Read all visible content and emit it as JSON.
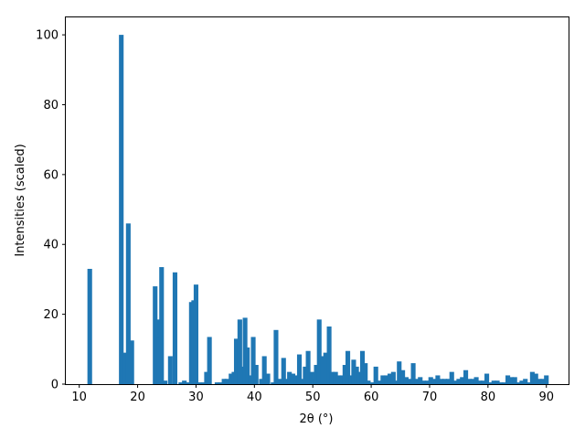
{
  "chart_data": {
    "type": "bar",
    "title": "",
    "xlabel": "2θ (°)",
    "ylabel": "Intensities (scaled)",
    "xlim": [
      7.7,
      93.8
    ],
    "ylim": [
      0,
      105
    ],
    "xticks": [
      10,
      20,
      30,
      40,
      50,
      60,
      70,
      80,
      90
    ],
    "yticks": [
      0,
      20,
      40,
      60,
      80,
      100
    ],
    "grid": false,
    "legend": "none",
    "bar_width": 0.8,
    "color": "#1f77b4",
    "series": [
      {
        "x": [
          11.8,
          17.2,
          17.8,
          18.4,
          19.0,
          23.0,
          23.4,
          23.7,
          24.1,
          24.7,
          25.6,
          26.4,
          27.4,
          28.0,
          28.5,
          29.2,
          29.6,
          30.0,
          30.6,
          31.3,
          31.8,
          32.3,
          33.6,
          34.2,
          34.8,
          35.3,
          36.0,
          36.5,
          36.9,
          37.5,
          38.0,
          38.4,
          38.8,
          39.3,
          39.8,
          40.3,
          41.2,
          41.7,
          42.3,
          43.2,
          43.7,
          44.3,
          45.0,
          45.5,
          46.0,
          46.6,
          47.2,
          47.7,
          48.2,
          48.7,
          49.2,
          49.8,
          50.2,
          50.6,
          51.1,
          51.7,
          52.2,
          52.8,
          53.3,
          53.9,
          54.4,
          55.0,
          55.5,
          56.0,
          56.5,
          57.0,
          57.5,
          58.0,
          58.5,
          59.0,
          59.5,
          60.3,
          60.8,
          61.4,
          62.0,
          62.6,
          63.2,
          63.8,
          64.3,
          64.8,
          65.4,
          66.0,
          66.6,
          67.2,
          67.8,
          68.4,
          69.0,
          69.6,
          70.2,
          70.8,
          71.4,
          72.0,
          72.6,
          73.2,
          73.8,
          74.4,
          75.0,
          75.6,
          76.2,
          76.8,
          77.4,
          78.0,
          78.6,
          79.2,
          79.8,
          80.4,
          81.0,
          81.6,
          82.2,
          82.8,
          83.4,
          84.0,
          84.6,
          85.2,
          85.8,
          86.4,
          87.0,
          87.6,
          88.2,
          88.8,
          89.4,
          90.0
        ],
        "values": [
          33,
          100,
          9,
          46,
          12.5,
          28,
          18.5,
          13.5,
          33.5,
          1,
          8,
          32,
          0.5,
          1,
          0.5,
          23.5,
          24,
          28.5,
          0.5,
          0.5,
          3.5,
          13.5,
          0.5,
          0.5,
          1.5,
          1.5,
          3,
          3.5,
          13,
          18.5,
          5,
          19,
          10.5,
          2.5,
          13.5,
          5.5,
          1.5,
          8,
          3,
          0.5,
          15.5,
          1.5,
          7.5,
          1.5,
          3.5,
          3,
          2.5,
          8.5,
          1.5,
          5,
          9.5,
          3.5,
          1.5,
          5.5,
          18.5,
          8,
          9,
          16.5,
          3.5,
          3.5,
          2.5,
          2.5,
          5.5,
          9.5,
          2.5,
          7,
          5,
          3.5,
          9.5,
          6,
          1,
          0.5,
          5,
          1,
          2.5,
          2.5,
          3,
          3.5,
          1,
          6.5,
          4,
          2,
          1.5,
          6,
          1.5,
          2,
          1,
          1,
          2,
          1.5,
          2.5,
          1.5,
          1.5,
          1.5,
          3.5,
          1,
          1.5,
          2,
          4,
          1.5,
          1.5,
          2,
          1,
          1,
          3,
          0.5,
          1,
          1,
          0.5,
          0.5,
          2.5,
          2,
          2,
          0.5,
          1,
          1.5,
          0.5,
          3.5,
          3,
          1.5,
          1.5,
          2.5
        ]
      }
    ]
  }
}
